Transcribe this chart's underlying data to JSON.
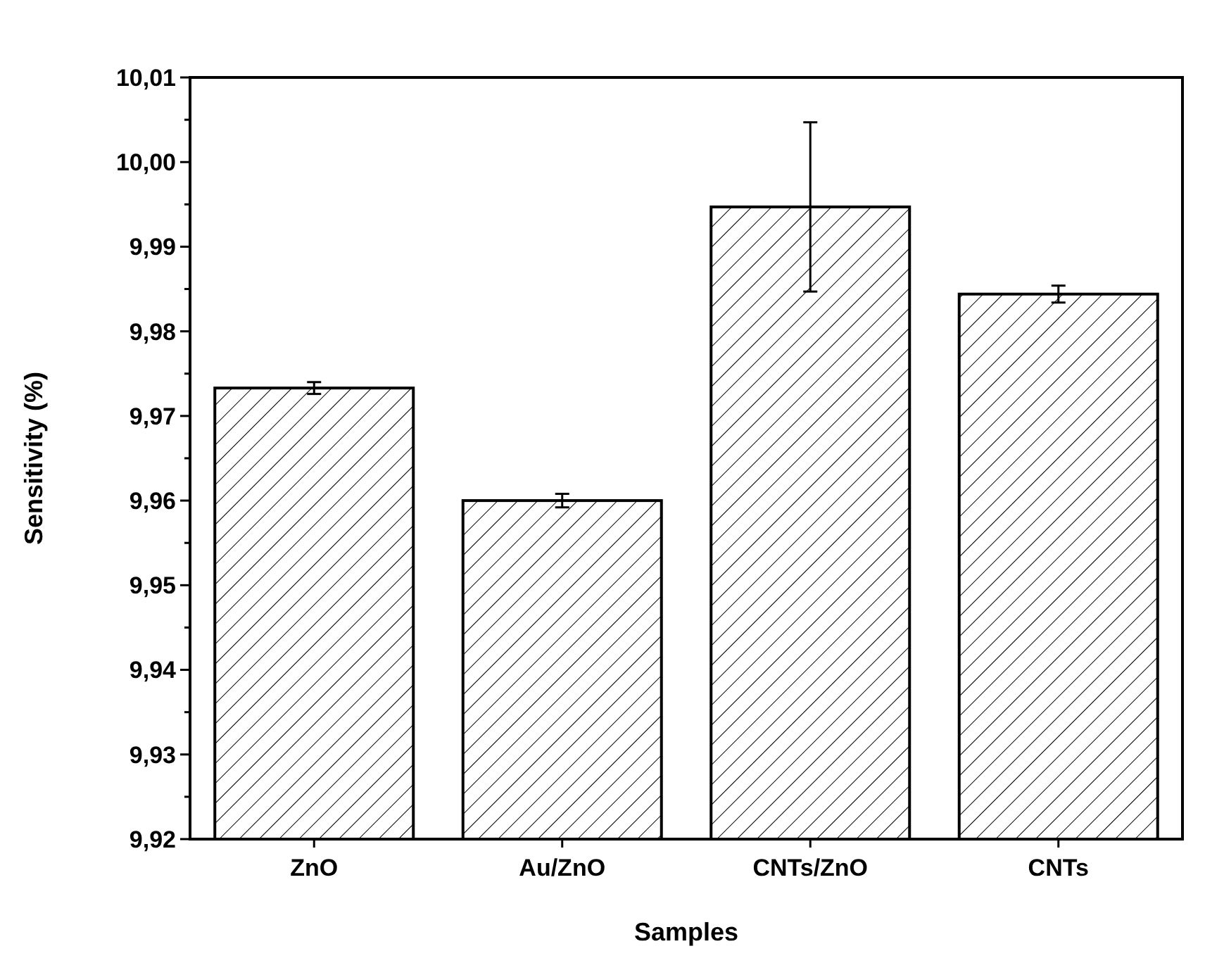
{
  "chart_data": {
    "type": "bar",
    "xlabel": "Samples",
    "ylabel": "Sensitivity (%)",
    "categories": [
      "ZnO",
      "Au/ZnO",
      "CNTs/ZnO",
      "CNTs"
    ],
    "values": [
      9.9733,
      9.96,
      9.9947,
      9.9844
    ],
    "errors": [
      0.0007,
      0.0008,
      0.01,
      0.001
    ],
    "color": "#000000",
    "ylim": [
      9.92,
      10.01
    ],
    "yticks": [
      {
        "value": 9.92,
        "label": "9,92"
      },
      {
        "value": 9.925,
        "label": null
      },
      {
        "value": 9.93,
        "label": "9,93"
      },
      {
        "value": 9.935,
        "label": null
      },
      {
        "value": 9.94,
        "label": "9,94"
      },
      {
        "value": 9.945,
        "label": null
      },
      {
        "value": 9.95,
        "label": "9,95"
      },
      {
        "value": 9.955,
        "label": null
      },
      {
        "value": 9.96,
        "label": "9,96"
      },
      {
        "value": 9.965,
        "label": null
      },
      {
        "value": 9.97,
        "label": "9,97"
      },
      {
        "value": 9.975,
        "label": null
      },
      {
        "value": 9.98,
        "label": "9,98"
      },
      {
        "value": 9.985,
        "label": null
      },
      {
        "value": 9.99,
        "label": "9,99"
      },
      {
        "value": 9.995,
        "label": null
      },
      {
        "value": 10.0,
        "label": "10,00"
      },
      {
        "value": 10.005,
        "label": null
      },
      {
        "value": 10.01,
        "label": "10,01"
      }
    ],
    "grid": false
  }
}
